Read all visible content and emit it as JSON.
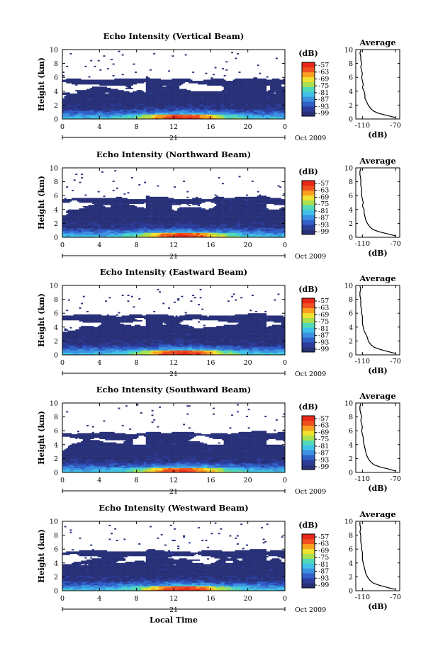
{
  "figure": {
    "panel_titles": [
      "Echo Intensity (Vertical Beam)",
      "Echo Intensity (Northward Beam)",
      "Echo Intensity (Eastward Beam)",
      "Echo Intensity (Southward Beam)",
      "Echo Intensity (Westward Beam)"
    ],
    "ylabel": "Height (km)",
    "xlabel": "Local Time",
    "date_day": "21",
    "date_month_year": "Oct 2009",
    "colorbar_unit": "(dB)",
    "profile_title": "Average",
    "profile_unit": "(dB)"
  },
  "chart_data": [
    {
      "type": "heatmap",
      "title": "Echo Intensity (Vertical Beam)",
      "ylabel": "Height (km)",
      "x_ticks": [
        "0",
        "4",
        "8",
        "12",
        "16",
        "20",
        "0"
      ],
      "y_ticks": [
        "0",
        "2",
        "4",
        "6",
        "8",
        "10"
      ],
      "xlim": [
        0,
        24
      ],
      "ylim": [
        0,
        10
      ],
      "colorbar": {
        "label": "(dB)",
        "ticks": [
          "-57",
          "-63",
          "-69",
          "-75",
          "-81",
          "-87",
          "-93",
          "-99"
        ],
        "range": [
          -99,
          -57
        ]
      },
      "profile": {
        "type": "line",
        "title": "Average",
        "xlabel": "(dB)",
        "x_ticks": [
          "-110",
          "-70"
        ],
        "xlim": [
          -118,
          -65
        ],
        "ylim": [
          0,
          10
        ],
        "y_ticks": [
          "0",
          "2",
          "4",
          "6",
          "8",
          "10"
        ],
        "heights": [
          0.2,
          0.5,
          0.8,
          1.1,
          1.5,
          2.0,
          2.5,
          3.0,
          3.5,
          4.0,
          4.5,
          5.0,
          5.5,
          6.0,
          6.5,
          7.0,
          7.5,
          8.0,
          8.5,
          9.0,
          9.5,
          9.9
        ],
        "values": [
          -70,
          -80,
          -90,
          -96,
          -100,
          -103,
          -105,
          -107,
          -107,
          -108,
          -110,
          -109,
          -110,
          -111,
          -110,
          -111,
          -112,
          -111,
          -112,
          -112,
          -113,
          -112
        ]
      }
    },
    {
      "type": "heatmap",
      "title": "Echo Intensity (Northward Beam)",
      "ylabel": "Height (km)",
      "x_ticks": [
        "0",
        "4",
        "8",
        "12",
        "16",
        "20",
        "0"
      ],
      "y_ticks": [
        "0",
        "2",
        "4",
        "6",
        "8",
        "10"
      ],
      "xlim": [
        0,
        24
      ],
      "ylim": [
        0,
        10
      ],
      "colorbar": {
        "label": "(dB)",
        "ticks": [
          "-57",
          "-63",
          "-69",
          "-75",
          "-81",
          "-87",
          "-93",
          "-99"
        ],
        "range": [
          -99,
          -57
        ]
      },
      "profile": {
        "type": "line",
        "title": "Average",
        "xlabel": "(dB)",
        "x_ticks": [
          "-110",
          "-70"
        ],
        "xlim": [
          -118,
          -65
        ],
        "ylim": [
          0,
          10
        ],
        "y_ticks": [
          "0",
          "2",
          "4",
          "6",
          "8",
          "10"
        ],
        "heights": [
          0.2,
          0.5,
          0.8,
          1.1,
          1.5,
          2.0,
          2.5,
          3.0,
          3.5,
          4.0,
          4.5,
          5.0,
          5.5,
          6.0,
          6.5,
          7.0,
          7.5,
          8.0,
          8.5,
          9.0,
          9.5,
          9.9
        ],
        "values": [
          -70,
          -80,
          -90,
          -97,
          -101,
          -104,
          -106,
          -107,
          -108,
          -108,
          -110,
          -109,
          -110,
          -111,
          -111,
          -111,
          -112,
          -112,
          -112,
          -113,
          -113,
          -112
        ]
      }
    },
    {
      "type": "heatmap",
      "title": "Echo Intensity (Eastward Beam)",
      "ylabel": "Height (km)",
      "x_ticks": [
        "0",
        "4",
        "8",
        "12",
        "16",
        "20",
        "0"
      ],
      "y_ticks": [
        "0",
        "2",
        "4",
        "6",
        "8",
        "10"
      ],
      "xlim": [
        0,
        24
      ],
      "ylim": [
        0,
        10
      ],
      "colorbar": {
        "label": "(dB)",
        "ticks": [
          "-57",
          "-63",
          "-69",
          "-75",
          "-81",
          "-87",
          "-93",
          "-99"
        ],
        "range": [
          -99,
          -57
        ]
      },
      "profile": {
        "type": "line",
        "title": "Average",
        "xlabel": "(dB)",
        "x_ticks": [
          "-110",
          "-70"
        ],
        "xlim": [
          -118,
          -65
        ],
        "ylim": [
          0,
          10
        ],
        "y_ticks": [
          "0",
          "2",
          "4",
          "6",
          "8",
          "10"
        ],
        "heights": [
          0.2,
          0.5,
          0.8,
          1.1,
          1.5,
          2.0,
          2.5,
          3.0,
          3.5,
          4.0,
          4.5,
          5.0,
          5.5,
          6.0,
          6.5,
          7.0,
          7.5,
          8.0,
          8.5,
          9.0,
          9.5,
          9.9
        ],
        "values": [
          -70,
          -80,
          -89,
          -96,
          -100,
          -103,
          -104,
          -106,
          -108,
          -109,
          -110,
          -110,
          -110,
          -111,
          -111,
          -112,
          -112,
          -112,
          -113,
          -113,
          -112,
          -113
        ]
      }
    },
    {
      "type": "heatmap",
      "title": "Echo Intensity (Southward Beam)",
      "ylabel": "Height (km)",
      "x_ticks": [
        "0",
        "4",
        "8",
        "12",
        "16",
        "20",
        "0"
      ],
      "y_ticks": [
        "0",
        "2",
        "4",
        "6",
        "8",
        "10"
      ],
      "xlim": [
        0,
        24
      ],
      "ylim": [
        0,
        10
      ],
      "colorbar": {
        "label": "(dB)",
        "ticks": [
          "-57",
          "-63",
          "-69",
          "-75",
          "-81",
          "-87",
          "-93",
          "-99"
        ],
        "range": [
          -99,
          -57
        ]
      },
      "profile": {
        "type": "line",
        "title": "Average",
        "xlabel": "(dB)",
        "x_ticks": [
          "-110",
          "-70"
        ],
        "xlim": [
          -118,
          -65
        ],
        "ylim": [
          0,
          10
        ],
        "y_ticks": [
          "0",
          "2",
          "4",
          "6",
          "8",
          "10"
        ],
        "heights": [
          0.2,
          0.5,
          0.8,
          1.1,
          1.5,
          2.0,
          2.5,
          3.0,
          3.5,
          4.0,
          4.5,
          5.0,
          5.5,
          6.0,
          6.5,
          7.0,
          7.5,
          8.0,
          8.5,
          9.0,
          9.5,
          9.9
        ],
        "values": [
          -70,
          -79,
          -89,
          -96,
          -100,
          -103,
          -105,
          -106,
          -107,
          -108,
          -109,
          -109,
          -110,
          -111,
          -110,
          -111,
          -112,
          -111,
          -112,
          -113,
          -113,
          -112
        ]
      }
    },
    {
      "type": "heatmap",
      "title": "Echo Intensity (Westward Beam)",
      "ylabel": "Height (km)",
      "xlabel": "Local Time",
      "x_ticks": [
        "0",
        "4",
        "8",
        "12",
        "16",
        "20",
        "0"
      ],
      "y_ticks": [
        "0",
        "2",
        "4",
        "6",
        "8",
        "10"
      ],
      "xlim": [
        0,
        24
      ],
      "ylim": [
        0,
        10
      ],
      "colorbar": {
        "label": "(dB)",
        "ticks": [
          "-57",
          "-63",
          "-69",
          "-75",
          "-81",
          "-87",
          "-93",
          "-99"
        ],
        "range": [
          -99,
          -57
        ]
      },
      "profile": {
        "type": "line",
        "title": "Average",
        "xlabel": "(dB)",
        "x_ticks": [
          "-110",
          "-70"
        ],
        "xlim": [
          -118,
          -65
        ],
        "ylim": [
          0,
          10
        ],
        "y_ticks": [
          "0",
          "2",
          "4",
          "6",
          "8",
          "10"
        ],
        "heights": [
          0.2,
          0.5,
          0.8,
          1.1,
          1.5,
          2.0,
          2.5,
          3.0,
          3.5,
          4.0,
          4.5,
          5.0,
          5.5,
          6.0,
          6.5,
          7.0,
          7.5,
          8.0,
          8.5,
          9.0,
          9.5,
          9.9
        ],
        "values": [
          -71,
          -81,
          -90,
          -97,
          -101,
          -104,
          -106,
          -107,
          -108,
          -109,
          -110,
          -110,
          -110,
          -111,
          -111,
          -112,
          -112,
          -112,
          -113,
          -112,
          -113,
          -113
        ]
      }
    }
  ],
  "colors": {
    "scale": [
      "#283078",
      "#2c3c98",
      "#3060c8",
      "#3c90e0",
      "#40c0e8",
      "#50d8b8",
      "#a8e050",
      "#f0e030",
      "#f8a020",
      "#f05020",
      "#e82818"
    ]
  }
}
